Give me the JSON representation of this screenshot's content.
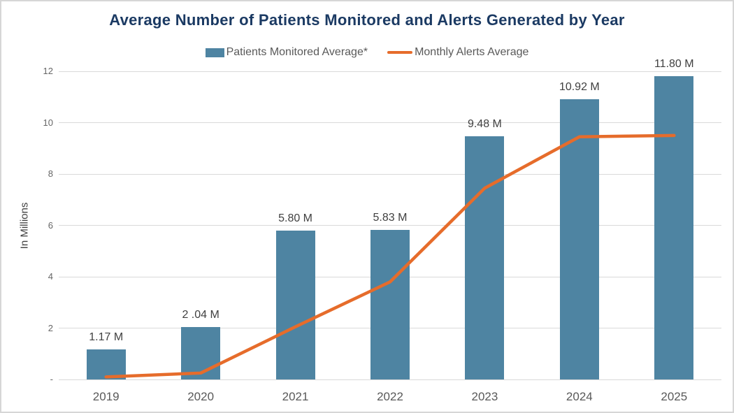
{
  "colors": {
    "title": "#1B3A63",
    "bar": "#4E84A2",
    "line": "#E66C2B",
    "data_label": "#404040",
    "axis_label": "#595959",
    "tick_label": "#666666",
    "gridline": "#D9D9D9",
    "canvas_border": "#D6D6D6",
    "background": "#FFFFFF"
  },
  "chart_data": {
    "type": "bar",
    "title": "Average Number of Patients Monitored and Alerts Generated by Year",
    "ylabel": "In Millions",
    "xlabel": "",
    "categories": [
      "2019",
      "2020",
      "2021",
      "2022",
      "2023",
      "2024",
      "2025"
    ],
    "series": [
      {
        "name": "Patients Monitored Average*",
        "type": "bar",
        "color": "#4E84A2",
        "values": [
          1.17,
          2.04,
          5.8,
          5.83,
          9.48,
          10.92,
          11.8
        ],
        "data_labels": [
          "1.17 M",
          "2 .04 M",
          "5.80 M",
          "5.83 M",
          "9.48 M",
          "10.92 M",
          "11.80 M"
        ]
      },
      {
        "name": "Monthly Alerts Average",
        "type": "line",
        "color": "#E66C2B",
        "values": [
          0.1,
          0.25,
          2.05,
          3.8,
          7.45,
          9.45,
          9.5
        ]
      }
    ],
    "ylim": [
      0,
      12
    ],
    "ytick_step": 2,
    "ytick_labels": [
      "-",
      "2",
      "4",
      "6",
      "8",
      "10",
      "12"
    ],
    "grid": true,
    "legend_position": "top-center"
  }
}
